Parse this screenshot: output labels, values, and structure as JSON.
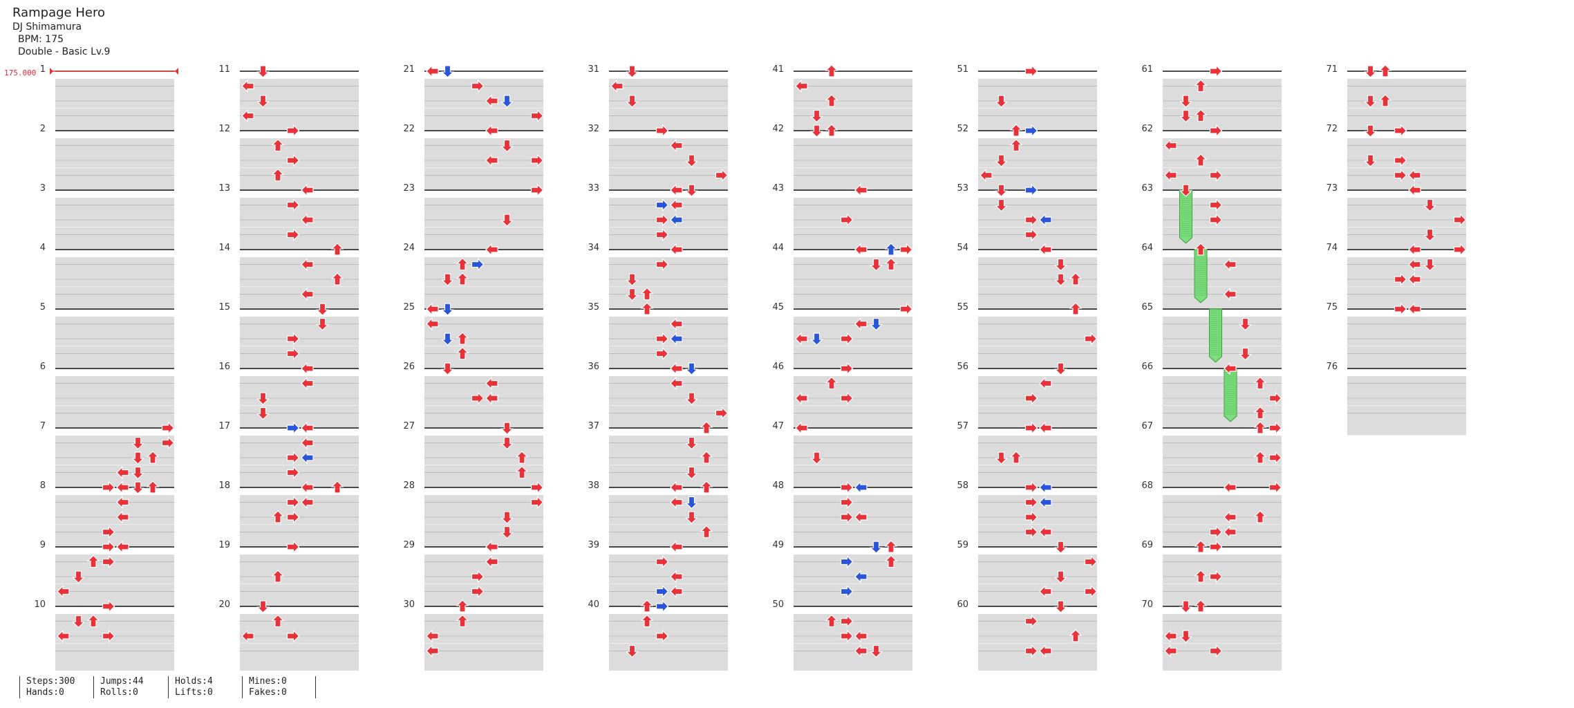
{
  "song": {
    "title": "Rampage Hero",
    "artist": "DJ Shimamura",
    "bpm_label": "BPM: 175",
    "difficulty": "Double - Basic  Lv.9"
  },
  "bpm_marker": "175.000",
  "measure_count": 76,
  "stats": [
    {
      "top": "Steps:300",
      "bottom": "Hands:0"
    },
    {
      "top": "Jumps:44",
      "bottom": "Rolls:0"
    },
    {
      "top": "Holds:4",
      "bottom": "Lifts:0"
    },
    {
      "top": "Mines:0",
      "bottom": "Fakes:0"
    }
  ],
  "colors": {
    "arrow_red": "#e8323a",
    "arrow_blue": "#2b55d8",
    "hold_green": "#7ddc7d",
    "stripe": "#dcdcdc",
    "bpm": "#e23333"
  },
  "notes": {
    "1": [],
    "2": [],
    "3": [],
    "4": [],
    "5": [],
    "6": [],
    "7": [
      [
        0,
        7,
        "r"
      ],
      [
        1,
        5,
        "r"
      ],
      [
        1,
        7,
        "r"
      ],
      [
        2,
        5,
        "r"
      ],
      [
        2,
        6,
        "r"
      ],
      [
        3,
        4,
        "r"
      ],
      [
        3,
        5,
        "r"
      ],
      [
        4,
        3,
        "r"
      ],
      [
        4,
        4,
        "r"
      ]
    ],
    "8": [
      [
        0,
        5,
        "r"
      ],
      [
        0,
        6,
        "r"
      ],
      [
        1,
        4,
        "r"
      ],
      [
        2,
        4,
        "r"
      ],
      [
        3,
        3,
        "r"
      ],
      [
        4,
        3,
        "r"
      ],
      [
        5,
        2,
        "r"
      ]
    ],
    "9": [
      [
        0,
        3,
        "r"
      ],
      [
        0,
        4,
        "r"
      ],
      [
        1,
        3,
        "r"
      ],
      [
        2,
        1,
        "r"
      ],
      [
        3,
        0,
        "r"
      ]
    ],
    "10": [
      [
        0,
        3,
        "r"
      ],
      [
        1,
        1,
        "r"
      ],
      [
        1,
        2,
        "r"
      ],
      [
        2,
        0,
        "r"
      ],
      [
        2,
        3,
        "r"
      ]
    ],
    "11": [
      [
        0,
        1,
        "r"
      ],
      [
        1,
        0,
        "r"
      ],
      [
        2,
        1,
        "r"
      ],
      [
        3,
        0,
        "r"
      ]
    ],
    "12": [
      [
        0,
        3,
        "r"
      ],
      [
        1,
        2,
        "r"
      ],
      [
        2,
        3,
        "r"
      ],
      [
        3,
        2,
        "r"
      ]
    ],
    "13": [
      [
        0,
        4,
        "r"
      ],
      [
        1,
        3,
        "r"
      ],
      [
        2,
        4,
        "r"
      ],
      [
        3,
        3,
        "r"
      ]
    ],
    "14": [
      [
        0,
        6,
        "r"
      ],
      [
        1,
        4,
        "r"
      ],
      [
        2,
        6,
        "r"
      ],
      [
        3,
        4,
        "r"
      ]
    ],
    "15": [
      [
        0,
        5,
        "r"
      ],
      [
        1,
        5,
        "r"
      ],
      [
        2,
        3,
        "r"
      ],
      [
        3,
        3,
        "r"
      ]
    ],
    "16": [
      [
        0,
        4,
        "r"
      ],
      [
        1,
        4,
        "r"
      ],
      [
        2,
        1,
        "r"
      ],
      [
        3,
        1,
        "r"
      ]
    ],
    "17": [
      [
        0,
        3,
        "b"
      ],
      [
        0,
        4,
        "r"
      ],
      [
        1,
        4,
        "r"
      ],
      [
        2,
        3,
        "r"
      ],
      [
        2,
        4,
        "b"
      ],
      [
        3,
        3,
        "r"
      ]
    ],
    "18": [
      [
        0,
        4,
        "r"
      ],
      [
        0,
        6,
        "r"
      ],
      [
        1,
        3,
        "r"
      ],
      [
        1,
        4,
        "r"
      ],
      [
        2,
        2,
        "r"
      ],
      [
        2,
        3,
        "r"
      ]
    ],
    "19": [
      [
        0,
        3,
        "r"
      ],
      [
        2,
        2,
        "r"
      ]
    ],
    "20": [
      [
        0,
        1,
        "r"
      ],
      [
        1,
        2,
        "r"
      ],
      [
        2,
        0,
        "r"
      ],
      [
        2,
        3,
        "r"
      ]
    ],
    "21": [
      [
        0,
        0,
        "r"
      ],
      [
        0,
        1,
        "b"
      ],
      [
        1,
        3,
        "r"
      ],
      [
        2,
        4,
        "r"
      ],
      [
        2,
        5,
        "b"
      ],
      [
        3,
        7,
        "r"
      ]
    ],
    "22": [
      [
        0,
        4,
        "r"
      ],
      [
        1,
        5,
        "r"
      ],
      [
        2,
        4,
        "r"
      ],
      [
        2,
        7,
        "r"
      ]
    ],
    "23": [
      [
        0,
        7,
        "r"
      ],
      [
        2,
        5,
        "r"
      ]
    ],
    "24": [
      [
        0,
        4,
        "r"
      ],
      [
        1,
        3,
        "b"
      ],
      [
        1,
        2,
        "r"
      ],
      [
        2,
        1,
        "r"
      ],
      [
        2,
        2,
        "r"
      ]
    ],
    "25": [
      [
        0,
        0,
        "r"
      ],
      [
        0,
        1,
        "b"
      ],
      [
        1,
        0,
        "r"
      ],
      [
        2,
        1,
        "b"
      ],
      [
        2,
        2,
        "r"
      ],
      [
        3,
        2,
        "r"
      ]
    ],
    "26": [
      [
        0,
        1,
        "r"
      ],
      [
        1,
        4,
        "r"
      ],
      [
        2,
        3,
        "r"
      ],
      [
        2,
        4,
        "r"
      ]
    ],
    "27": [
      [
        0,
        5,
        "r"
      ],
      [
        1,
        5,
        "r"
      ],
      [
        2,
        6,
        "r"
      ],
      [
        3,
        6,
        "r"
      ]
    ],
    "28": [
      [
        0,
        7,
        "r"
      ],
      [
        1,
        7,
        "r"
      ],
      [
        2,
        5,
        "r"
      ],
      [
        3,
        5,
        "r"
      ]
    ],
    "29": [
      [
        0,
        4,
        "r"
      ],
      [
        1,
        4,
        "r"
      ],
      [
        2,
        3,
        "r"
      ],
      [
        3,
        3,
        "r"
      ]
    ],
    "30": [
      [
        0,
        2,
        "r"
      ],
      [
        1,
        2,
        "r"
      ],
      [
        2,
        0,
        "r"
      ],
      [
        3,
        0,
        "r"
      ]
    ],
    "31": [
      [
        0,
        1,
        "r"
      ],
      [
        1,
        0,
        "r"
      ],
      [
        2,
        1,
        "r"
      ]
    ],
    "32": [
      [
        0,
        3,
        "r"
      ],
      [
        1,
        4,
        "r"
      ],
      [
        2,
        5,
        "r"
      ],
      [
        3,
        7,
        "r"
      ]
    ],
    "33": [
      [
        0,
        5,
        "r"
      ],
      [
        0,
        4,
        "r"
      ],
      [
        1,
        3,
        "b"
      ],
      [
        1,
        4,
        "r"
      ],
      [
        2,
        3,
        "r"
      ],
      [
        2,
        4,
        "b"
      ],
      [
        3,
        3,
        "r"
      ]
    ],
    "34": [
      [
        0,
        4,
        "r"
      ],
      [
        1,
        3,
        "r"
      ],
      [
        2,
        1,
        "r"
      ],
      [
        3,
        1,
        "r"
      ],
      [
        3,
        2,
        "r"
      ]
    ],
    "35": [
      [
        0,
        2,
        "r"
      ],
      [
        1,
        4,
        "r"
      ],
      [
        2,
        3,
        "r"
      ],
      [
        2,
        4,
        "b"
      ],
      [
        3,
        3,
        "r"
      ]
    ],
    "36": [
      [
        0,
        4,
        "r"
      ],
      [
        0,
        5,
        "b"
      ],
      [
        1,
        4,
        "r"
      ],
      [
        2,
        5,
        "r"
      ],
      [
        3,
        7,
        "r"
      ]
    ],
    "37": [
      [
        0,
        6,
        "r"
      ],
      [
        1,
        5,
        "r"
      ],
      [
        2,
        6,
        "r"
      ],
      [
        3,
        5,
        "r"
      ]
    ],
    "38": [
      [
        0,
        4,
        "r"
      ],
      [
        0,
        6,
        "r"
      ],
      [
        1,
        4,
        "r"
      ],
      [
        1,
        5,
        "b"
      ],
      [
        2,
        5,
        "r"
      ],
      [
        3,
        6,
        "r"
      ]
    ],
    "39": [
      [
        0,
        4,
        "r"
      ],
      [
        1,
        3,
        "r"
      ],
      [
        2,
        4,
        "r"
      ],
      [
        3,
        3,
        "b"
      ],
      [
        3,
        4,
        "r"
      ]
    ],
    "40": [
      [
        0,
        2,
        "r"
      ],
      [
        0,
        3,
        "b"
      ],
      [
        1,
        2,
        "r"
      ],
      [
        2,
        3,
        "r"
      ],
      [
        3,
        1,
        "r"
      ]
    ],
    "41": [
      [
        0,
        2,
        "r"
      ],
      [
        1,
        0,
        "r"
      ],
      [
        2,
        2,
        "r"
      ],
      [
        3,
        1,
        "r"
      ]
    ],
    "42": [
      [
        0,
        1,
        "r"
      ],
      [
        0,
        2,
        "r"
      ]
    ],
    "43": [
      [
        0,
        4,
        "r"
      ],
      [
        2,
        3,
        "r"
      ]
    ],
    "44": [
      [
        0,
        4,
        "r"
      ],
      [
        0,
        6,
        "b"
      ],
      [
        0,
        7,
        "r"
      ],
      [
        1,
        5,
        "r"
      ],
      [
        1,
        6,
        "r"
      ]
    ],
    "45": [
      [
        0,
        7,
        "r"
      ],
      [
        1,
        5,
        "b"
      ],
      [
        1,
        4,
        "r"
      ],
      [
        2,
        3,
        "r"
      ],
      [
        2,
        1,
        "b"
      ],
      [
        2,
        0,
        "r"
      ]
    ],
    "46": [
      [
        0,
        3,
        "r"
      ],
      [
        1,
        2,
        "r"
      ],
      [
        2,
        0,
        "r"
      ],
      [
        2,
        3,
        "r"
      ]
    ],
    "47": [
      [
        0,
        0,
        "r"
      ],
      [
        2,
        1,
        "r"
      ]
    ],
    "48": [
      [
        0,
        3,
        "r"
      ],
      [
        0,
        4,
        "b"
      ],
      [
        1,
        3,
        "r"
      ],
      [
        2,
        3,
        "r"
      ],
      [
        2,
        4,
        "r"
      ]
    ],
    "49": [
      [
        0,
        6,
        "r"
      ],
      [
        0,
        5,
        "b"
      ],
      [
        1,
        6,
        "r"
      ],
      [
        1,
        3,
        "b"
      ],
      [
        2,
        4,
        "b"
      ],
      [
        3,
        3,
        "b"
      ]
    ],
    "50": [
      [
        1,
        2,
        "r"
      ],
      [
        1,
        3,
        "r"
      ],
      [
        2,
        3,
        "r"
      ],
      [
        2,
        4,
        "r"
      ],
      [
        3,
        4,
        "r"
      ],
      [
        3,
        5,
        "r"
      ]
    ],
    "51": [
      [
        0,
        3,
        "r"
      ],
      [
        2,
        1,
        "r"
      ]
    ],
    "52": [
      [
        0,
        2,
        "r"
      ],
      [
        0,
        3,
        "b"
      ],
      [
        1,
        2,
        "r"
      ],
      [
        2,
        1,
        "r"
      ],
      [
        3,
        0,
        "r"
      ]
    ],
    "53": [
      [
        0,
        1,
        "r"
      ],
      [
        0,
        3,
        "b"
      ],
      [
        1,
        1,
        "r"
      ],
      [
        2,
        3,
        "r"
      ],
      [
        2,
        4,
        "b"
      ],
      [
        3,
        3,
        "r"
      ]
    ],
    "54": [
      [
        0,
        4,
        "r"
      ],
      [
        1,
        5,
        "r"
      ],
      [
        2,
        5,
        "r"
      ],
      [
        2,
        6,
        "r"
      ]
    ],
    "55": [
      [
        0,
        6,
        "r"
      ],
      [
        2,
        7,
        "r"
      ]
    ],
    "56": [
      [
        0,
        5,
        "r"
      ],
      [
        1,
        4,
        "r"
      ],
      [
        2,
        3,
        "r"
      ]
    ],
    "57": [
      [
        0,
        3,
        "r"
      ],
      [
        0,
        4,
        "r"
      ],
      [
        2,
        1,
        "r"
      ],
      [
        2,
        2,
        "r"
      ]
    ],
    "58": [
      [
        0,
        3,
        "r"
      ],
      [
        0,
        4,
        "b"
      ],
      [
        1,
        3,
        "r"
      ],
      [
        1,
        4,
        "b"
      ],
      [
        2,
        3,
        "r"
      ],
      [
        3,
        3,
        "r"
      ],
      [
        3,
        4,
        "r"
      ]
    ],
    "59": [
      [
        0,
        5,
        "r"
      ],
      [
        1,
        7,
        "r"
      ],
      [
        2,
        5,
        "r"
      ],
      [
        3,
        4,
        "r"
      ],
      [
        3,
        7,
        "r"
      ]
    ],
    "60": [
      [
        0,
        5,
        "r"
      ],
      [
        1,
        3,
        "r"
      ],
      [
        2,
        6,
        "r"
      ],
      [
        3,
        3,
        "r"
      ],
      [
        3,
        4,
        "r"
      ]
    ],
    "61": [
      [
        0,
        3,
        "r"
      ],
      [
        1,
        2,
        "r"
      ],
      [
        2,
        1,
        "r"
      ],
      [
        3,
        1,
        "r"
      ],
      [
        3,
        2,
        "r"
      ]
    ],
    "62": [
      [
        0,
        3,
        "r"
      ],
      [
        1,
        0,
        "r"
      ],
      [
        2,
        2,
        "r"
      ],
      [
        3,
        0,
        "r"
      ],
      [
        3,
        3,
        "r"
      ]
    ],
    "63": [
      [
        0,
        1,
        "r"
      ],
      [
        1,
        3,
        "r"
      ],
      [
        2,
        3,
        "r"
      ]
    ],
    "64": [
      [
        0,
        2,
        "r"
      ],
      [
        1,
        4,
        "r"
      ],
      [
        3,
        4,
        "r"
      ]
    ],
    "65": [
      [
        1,
        5,
        "r"
      ],
      [
        3,
        5,
        "r"
      ]
    ],
    "66": [
      [
        0,
        4,
        "r"
      ],
      [
        1,
        6,
        "r"
      ],
      [
        2,
        7,
        "r"
      ],
      [
        3,
        6,
        "r"
      ]
    ],
    "67": [
      [
        0,
        6,
        "r"
      ],
      [
        0,
        7,
        "r"
      ],
      [
        2,
        6,
        "r"
      ],
      [
        2,
        7,
        "r"
      ]
    ],
    "68": [
      [
        0,
        4,
        "r"
      ],
      [
        0,
        7,
        "r"
      ],
      [
        2,
        4,
        "r"
      ],
      [
        2,
        6,
        "r"
      ],
      [
        3,
        3,
        "r"
      ],
      [
        3,
        4,
        "r"
      ]
    ],
    "69": [
      [
        0,
        2,
        "r"
      ],
      [
        0,
        3,
        "r"
      ],
      [
        2,
        2,
        "r"
      ],
      [
        2,
        3,
        "r"
      ]
    ],
    "70": [
      [
        0,
        1,
        "r"
      ],
      [
        0,
        2,
        "r"
      ],
      [
        2,
        0,
        "r"
      ],
      [
        2,
        1,
        "r"
      ],
      [
        3,
        0,
        "r"
      ],
      [
        3,
        3,
        "r"
      ]
    ],
    "71": [
      [
        0,
        1,
        "r"
      ],
      [
        0,
        2,
        "r"
      ],
      [
        2,
        1,
        "r"
      ],
      [
        2,
        2,
        "r"
      ]
    ],
    "72": [
      [
        0,
        1,
        "r"
      ],
      [
        0,
        3,
        "r"
      ],
      [
        2,
        1,
        "r"
      ],
      [
        2,
        3,
        "r"
      ],
      [
        3,
        3,
        "r"
      ],
      [
        3,
        4,
        "r"
      ]
    ],
    "73": [
      [
        0,
        4,
        "r"
      ],
      [
        1,
        5,
        "r"
      ],
      [
        2,
        7,
        "r"
      ],
      [
        3,
        5,
        "r"
      ]
    ],
    "74": [
      [
        0,
        4,
        "r"
      ],
      [
        0,
        7,
        "r"
      ],
      [
        1,
        4,
        "r"
      ],
      [
        1,
        5,
        "r"
      ],
      [
        2,
        3,
        "r"
      ],
      [
        2,
        4,
        "r"
      ]
    ],
    "75": [
      [
        0,
        3,
        "r"
      ],
      [
        0,
        4,
        "r"
      ]
    ],
    "76": []
  },
  "holds": [
    {
      "measure": 63,
      "col": 1,
      "beat_start": 0,
      "beat_end": 3.2
    },
    {
      "measure": 64,
      "col": 2,
      "beat_start": 0,
      "beat_end": 3.2
    },
    {
      "measure": 65,
      "col": 3,
      "beat_start": 0,
      "beat_end": 3.2
    },
    {
      "measure": 66,
      "col": 4,
      "beat_start": 0,
      "beat_end": 3.2
    }
  ]
}
